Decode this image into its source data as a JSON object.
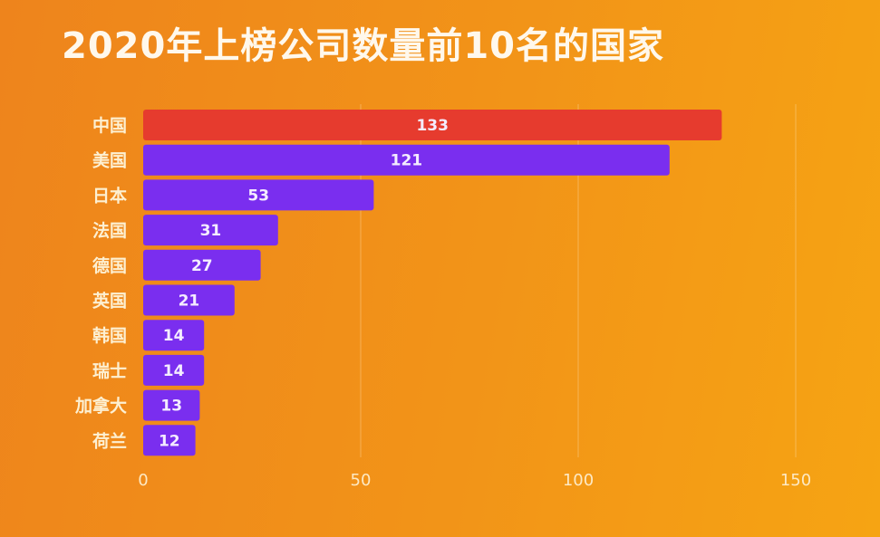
{
  "chart_data": {
    "type": "bar",
    "orientation": "horizontal",
    "title": "2020年上榜公司数量前10名的国家",
    "categories": [
      "中国",
      "美国",
      "日本",
      "法国",
      "德国",
      "英国",
      "韩国",
      "瑞士",
      "加拿大",
      "荷兰"
    ],
    "values": [
      133,
      121,
      53,
      31,
      27,
      21,
      14,
      14,
      13,
      12
    ],
    "xlim": [
      0,
      150
    ],
    "xticks": [
      "0",
      "50",
      "100",
      "150"
    ],
    "grid": true,
    "colors": {
      "highlight": "#e63b2e",
      "default": "#7a2eef",
      "background": "#f29418"
    }
  }
}
